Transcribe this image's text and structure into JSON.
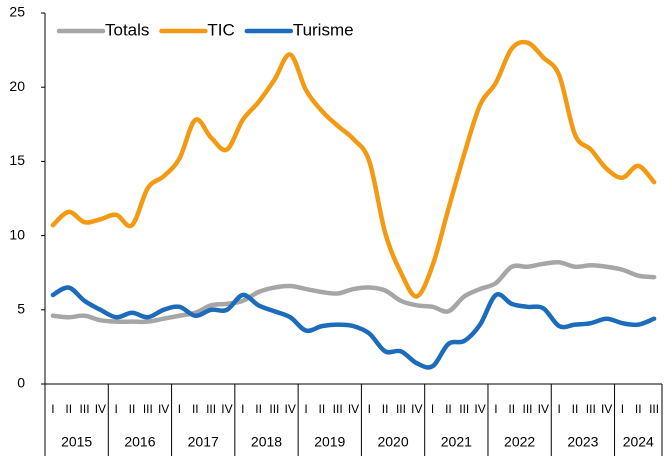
{
  "chart_data": {
    "type": "line",
    "categories": [
      "I",
      "II",
      "III",
      "IV",
      "I",
      "II",
      "III",
      "IV",
      "I",
      "II",
      "III",
      "IV",
      "I",
      "II",
      "III",
      "IV",
      "I",
      "II",
      "III",
      "IV",
      "I",
      "II",
      "III",
      "IV",
      "I",
      "II",
      "III",
      "IV",
      "I",
      "II",
      "III",
      "IV",
      "I",
      "II",
      "III",
      "IV",
      "I",
      "II",
      "III"
    ],
    "years": [
      "2015",
      "2016",
      "2017",
      "2018",
      "2019",
      "2020",
      "2021",
      "2022",
      "2023",
      "2024"
    ],
    "series": [
      {
        "name": "Totals",
        "color": "#a6a6a6",
        "values": [
          4.6,
          4.5,
          4.6,
          4.3,
          4.2,
          4.2,
          4.2,
          4.4,
          4.6,
          4.8,
          5.3,
          5.4,
          5.6,
          6.2,
          6.5,
          6.6,
          6.4,
          6.2,
          6.1,
          6.4,
          6.5,
          6.3,
          5.6,
          5.3,
          5.2,
          4.9,
          5.9,
          6.4,
          6.8,
          7.9,
          7.9,
          8.1,
          8.2,
          7.9,
          8.0,
          7.9,
          7.7,
          7.3,
          7.2
        ]
      },
      {
        "name": "TIC",
        "color": "#f39a12",
        "values": [
          10.7,
          11.6,
          10.9,
          11.1,
          11.4,
          10.7,
          13.2,
          14.0,
          15.2,
          17.8,
          16.6,
          15.8,
          17.8,
          19.0,
          20.5,
          22.2,
          19.8,
          18.4,
          17.4,
          16.5,
          15.0,
          10.2,
          7.5,
          5.9,
          8.0,
          11.8,
          15.5,
          18.8,
          20.3,
          22.6,
          23.0,
          22.0,
          20.8,
          16.8,
          15.8,
          14.5,
          13.9,
          14.7,
          13.6
        ]
      },
      {
        "name": "Turisme",
        "color": "#1c6cbb",
        "values": [
          6.0,
          6.5,
          5.6,
          5.0,
          4.5,
          4.8,
          4.5,
          5.0,
          5.2,
          4.6,
          5.0,
          5.0,
          6.0,
          5.3,
          4.9,
          4.5,
          3.6,
          3.9,
          4.0,
          3.9,
          3.4,
          2.2,
          2.2,
          1.4,
          1.2,
          2.7,
          2.9,
          4.0,
          6.0,
          5.4,
          5.2,
          5.1,
          3.9,
          4.0,
          4.1,
          4.4,
          4.1,
          4.0,
          4.4
        ]
      }
    ],
    "ylim": [
      0,
      25
    ],
    "yticks": [
      0,
      5,
      10,
      15,
      20,
      25
    ],
    "grid": false,
    "legend": "top-left"
  }
}
